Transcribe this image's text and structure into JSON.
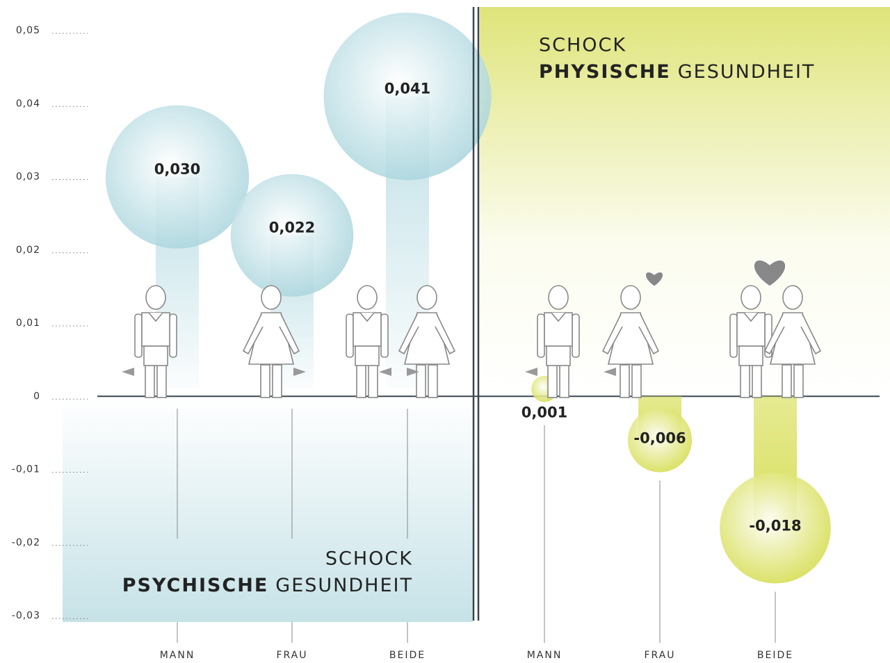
{
  "chart_data": {
    "type": "bubble",
    "ylim": [
      -0.03,
      0.05
    ],
    "yticks": [
      {
        "value": -0.03,
        "label": "-0,03"
      },
      {
        "value": -0.02,
        "label": "-0,02"
      },
      {
        "value": -0.01,
        "label": "-0,01"
      },
      0,
      {
        "value": 0.01,
        "label": "0,01"
      },
      {
        "value": 0.02,
        "label": "0,02"
      },
      {
        "value": 0.03,
        "label": "0,03"
      },
      {
        "value": 0.04,
        "label": "0,04"
      },
      {
        "value": 0.05,
        "label": "0,05"
      }
    ],
    "panels": [
      {
        "title": [
          "SCHOCK",
          "PSYCHISCHE",
          "GESUNDHEIT"
        ],
        "categories": [
          "MANN",
          "FRAU",
          "BEIDE"
        ],
        "values": [
          0.03,
          0.022,
          0.041
        ],
        "value_labels": [
          "0,030",
          "0,022",
          "0,041"
        ],
        "color": "#a9d5dd"
      },
      {
        "title": [
          "SCHOCK",
          "PHYSISCHE",
          "GESUNDHEIT"
        ],
        "categories": [
          "MANN",
          "FRAU",
          "BEIDE"
        ],
        "values": [
          0.001,
          -0.006,
          -0.018
        ],
        "value_labels": [
          "0,001",
          "-0,006",
          "-0,018"
        ],
        "color": "#d4dc4a"
      }
    ]
  }
}
